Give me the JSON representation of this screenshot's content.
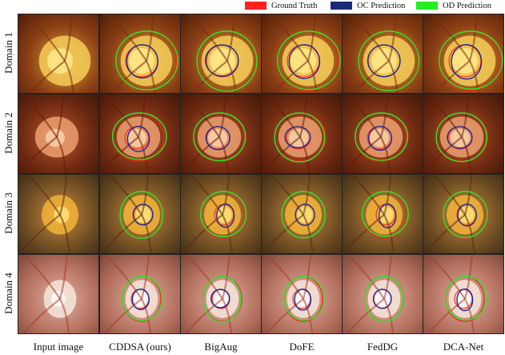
{
  "legend": [
    {
      "label": "Ground Truth",
      "color": "#ff2020"
    },
    {
      "label": "OC Prediction",
      "color": "#1a2a7a"
    },
    {
      "label": "OD Prediction",
      "color": "#22ee22"
    }
  ],
  "rows": [
    "Domain 1",
    "Domain 2",
    "Domain 3",
    "Domain 4"
  ],
  "columns": [
    "Input image",
    "CDDSA (ours)",
    "BigAug",
    "DoFE",
    "FedDG",
    "DCA-Net"
  ]
}
